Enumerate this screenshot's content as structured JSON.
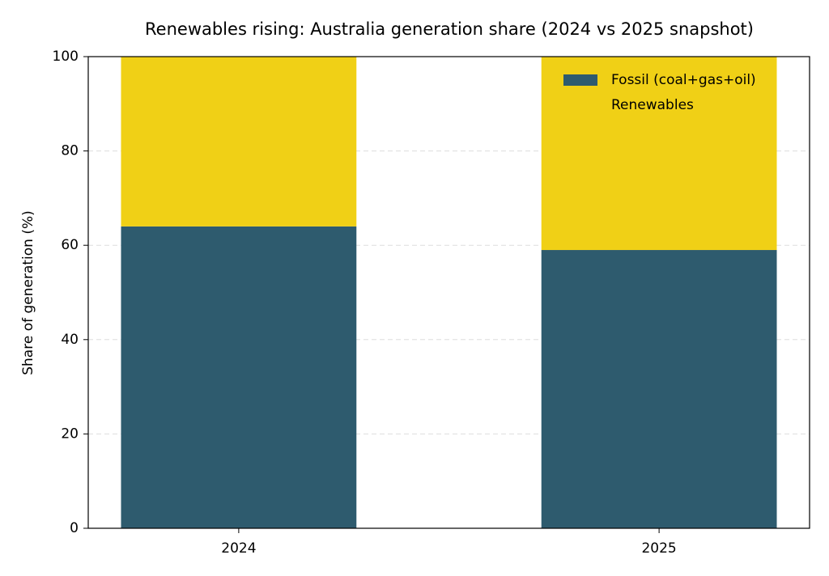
{
  "chart_data": {
    "type": "stacked_bar",
    "title": "Renewables rising: Australia generation share (2024 vs 2025 snapshot)",
    "y_label": "Share of generation (%)",
    "categories": [
      "2024",
      "2025"
    ],
    "series": [
      {
        "name": "Fossil (coal+gas+oil)",
        "color": "#2e5b6e",
        "values": [
          64,
          59
        ]
      },
      {
        "name": "Renewables",
        "color": "#f0d016",
        "values": [
          36,
          41
        ]
      }
    ],
    "ylim": [
      0,
      100
    ],
    "yticks": [
      0,
      20,
      40,
      60,
      80,
      100
    ],
    "grid": true,
    "legend": "upper right"
  }
}
